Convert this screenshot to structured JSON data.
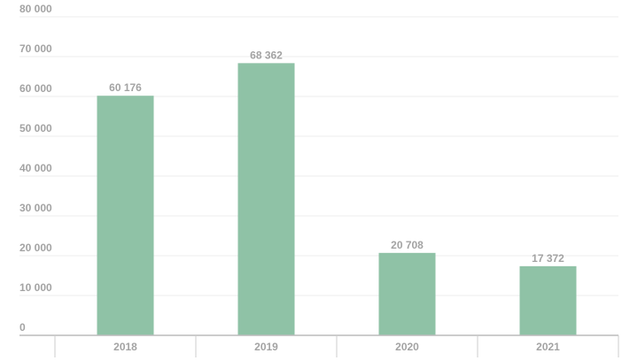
{
  "chart_data": {
    "type": "bar",
    "categories": [
      "2018",
      "2019",
      "2020",
      "2021"
    ],
    "values": [
      60176,
      68362,
      20708,
      17372
    ],
    "value_labels": [
      "60 176",
      "68 362",
      "20 708",
      "17 372"
    ],
    "color": "#8fc2a6",
    "ylim": [
      0,
      80000
    ],
    "yticks": [
      0,
      {
        "value": 10000,
        "label": "10 000"
      },
      {
        "value": 20000,
        "label": "20 000"
      },
      {
        "value": 30000,
        "label": "30 000"
      },
      {
        "value": 40000,
        "label": "40 000"
      },
      {
        "value": 50000,
        "label": "50 000"
      },
      {
        "value": 60000,
        "label": "60 000"
      },
      {
        "value": 70000,
        "label": "70 000"
      },
      {
        "value": 80000,
        "label": "80 000"
      }
    ],
    "grid": true
  }
}
